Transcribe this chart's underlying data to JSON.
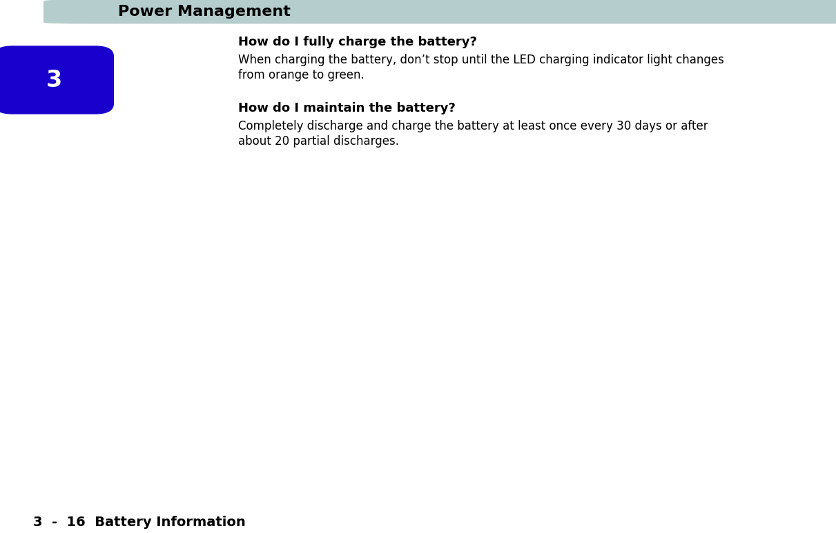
{
  "header_text": "Power Management",
  "header_bg_color": "#b5cdcd",
  "header_text_color": "#000000",
  "header_font_size": 16,
  "badge_number": "3",
  "badge_bg_color": "#1a00cc",
  "badge_text_color": "#ffffff",
  "badge_font_size": 24,
  "footer_text": "3  -  16  Battery Information",
  "footer_text_color": "#000000",
  "footer_font_size": 14,
  "footer_line_color": "#999999",
  "bg_color": "#ffffff",
  "section1_title": "How do I fully charge the battery?",
  "section1_title_fontsize": 13,
  "section1_body_line1": "When charging the battery, don’t stop until the LED charging indicator light changes",
  "section1_body_line2": "from orange to green.",
  "section1_body_fontsize": 12,
  "section2_title": "How do I maintain the battery?",
  "section2_title_fontsize": 13,
  "section2_body_line1": "Completely discharge and charge the battery at least once every 30 days or after",
  "section2_body_line2": "about 20 partial discharges.",
  "section2_body_fontsize": 12
}
